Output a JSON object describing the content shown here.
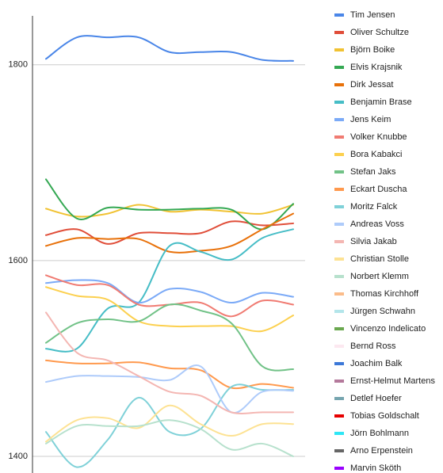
{
  "chart_data": {
    "type": "line",
    "categories": [
      null,
      null,
      null,
      null,
      null,
      null,
      null,
      null,
      null
    ],
    "ylim": [
      1383,
      1850
    ],
    "yticks": [
      1400,
      1600,
      1800
    ],
    "grid": true,
    "legend": "right",
    "series": [
      {
        "name": "Tim Jensen",
        "color": "#4a86e8",
        "values": [
          1806,
          1828,
          1828,
          1828,
          1813,
          1813,
          1813,
          1805,
          1804
        ]
      },
      {
        "name": "Oliver Schultze",
        "color": "#e04e39",
        "values": [
          1626,
          1632,
          1617,
          1628,
          1628,
          1628,
          1640,
          1636,
          1638
        ]
      },
      {
        "name": "Björn Boike",
        "color": "#f1c232",
        "values": [
          1653,
          1645,
          1648,
          1657,
          1650,
          1652,
          1650,
          1648,
          1657
        ]
      },
      {
        "name": "Elvis Krajsnik",
        "color": "#34a853",
        "values": [
          1683,
          1643,
          1654,
          1652,
          1652,
          1653,
          1652,
          1632,
          1658
        ]
      },
      {
        "name": "Dirk Jessat",
        "color": "#e8710a",
        "values": [
          1615,
          1623,
          1622,
          1622,
          1609,
          1610,
          1615,
          1632,
          1648
        ]
      },
      {
        "name": "Benjamin Brase",
        "color": "#46bdc6",
        "values": [
          1510,
          1510,
          1551,
          1557,
          1615,
          1609,
          1601,
          1623,
          1632
        ]
      },
      {
        "name": "Jens Keim",
        "color": "#7baaf7",
        "values": [
          1577,
          1580,
          1577,
          1557,
          1571,
          1568,
          1557,
          1567,
          1563
        ]
      },
      {
        "name": "Volker Knubbe",
        "color": "#f07b72",
        "values": [
          1585,
          1575,
          1575,
          1555,
          1555,
          1557,
          1543,
          1559,
          1555
        ]
      },
      {
        "name": "Bora Kabakci",
        "color": "#fcd04f",
        "values": [
          1573,
          1564,
          1560,
          1538,
          1533,
          1533,
          1533,
          1528,
          1544
        ]
      },
      {
        "name": "Stefan Jaks",
        "color": "#71c287",
        "values": [
          1516,
          1536,
          1540,
          1538,
          1555,
          1549,
          1536,
          1492,
          1489
        ]
      },
      {
        "name": "Eckart Duscha",
        "color": "#ff994d",
        "values": [
          1498,
          1495,
          1495,
          1496,
          1490,
          1488,
          1470,
          1474,
          1470
        ]
      },
      {
        "name": "Moritz Falck",
        "color": "#7fd1d8",
        "values": [
          1425,
          1389,
          1417,
          1460,
          1425,
          1428,
          1471,
          1468,
          1468
        ]
      },
      {
        "name": "Andreas Voss",
        "color": "#aecbfa",
        "values": [
          1476,
          1482,
          1482,
          1481,
          1478,
          1492,
          1445,
          1466,
          1467
        ]
      },
      {
        "name": "Silvia Jakab",
        "color": "#f4b6b2",
        "values": [
          1547,
          1506,
          1498,
          1482,
          1466,
          1462,
          1445,
          1445,
          1445
        ]
      },
      {
        "name": "Christian Stolle",
        "color": "#fde293",
        "values": [
          1415,
          1437,
          1439,
          1429,
          1452,
          1433,
          1421,
          1433,
          1433
        ]
      },
      {
        "name": "Norbert Klemm",
        "color": "#b7e1cd",
        "values": [
          1413,
          1431,
          1431,
          1431,
          1437,
          1428,
          1407,
          1413,
          1400
        ]
      },
      {
        "name": "Thomas Kirchhoff",
        "color": "#fbbc8a",
        "values": [
          null,
          null,
          null,
          null,
          null,
          null,
          null,
          null,
          null
        ]
      },
      {
        "name": "Jürgen Schwahn",
        "color": "#b3e5ea",
        "values": [
          null,
          null,
          null,
          null,
          null,
          null,
          null,
          null,
          null
        ]
      },
      {
        "name": "Vincenzo Indelicato",
        "color": "#6aa84f",
        "values": [
          null,
          null,
          null,
          null,
          null,
          null,
          null,
          null,
          null
        ]
      },
      {
        "name": "Bernd Ross",
        "color": "#fce8f0",
        "values": [
          null,
          null,
          null,
          null,
          null,
          null,
          null,
          null,
          null
        ]
      },
      {
        "name": "Joachim Balk",
        "color": "#3c78d8",
        "values": [
          null,
          null,
          null,
          null,
          null,
          null,
          null,
          null,
          null
        ]
      },
      {
        "name": "Ernst-Helmut Martens",
        "color": "#b4799b",
        "values": [
          null,
          null,
          null,
          null,
          null,
          null,
          null,
          null,
          null
        ]
      },
      {
        "name": "Detlef Hoefer",
        "color": "#76a5af",
        "values": [
          null,
          null,
          null,
          null,
          null,
          null,
          null,
          null,
          null
        ]
      },
      {
        "name": "Tobias Goldschalt",
        "color": "#e60000",
        "values": [
          null,
          null,
          null,
          null,
          null,
          null,
          null,
          null,
          null
        ]
      },
      {
        "name": "Jörn Bohlmann",
        "color": "#2ee6f5",
        "values": [
          null,
          null,
          null,
          null,
          null,
          null,
          null,
          null,
          null
        ]
      },
      {
        "name": "Arno Erpenstein",
        "color": "#666666",
        "values": [
          null,
          null,
          null,
          null,
          null,
          null,
          null,
          null,
          null
        ]
      },
      {
        "name": "Marvin Sköth",
        "color": "#9900ff",
        "values": [
          null,
          null,
          null,
          null,
          null,
          null,
          null,
          null,
          null
        ]
      }
    ]
  }
}
